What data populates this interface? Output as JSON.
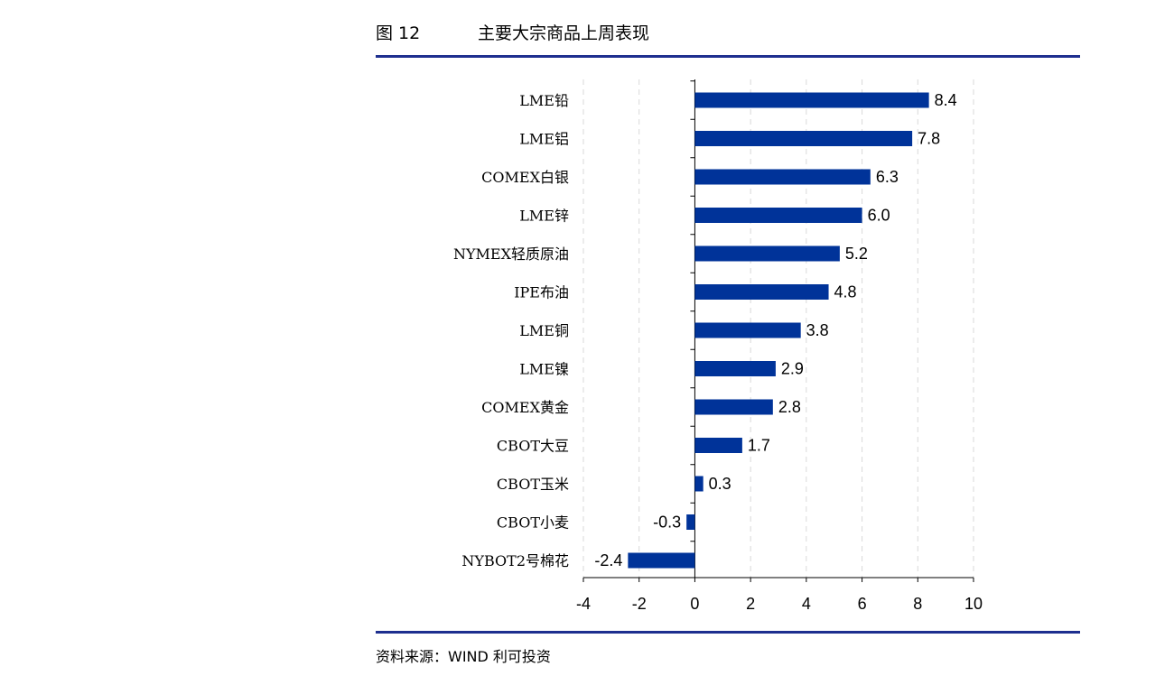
{
  "figure": {
    "number": "图 12",
    "title": "主要大宗商品上周表现",
    "source": "资料来源：WIND  利可投资"
  },
  "colors": {
    "bar": "#003399",
    "rule": "#1e2f8f",
    "grid": "#d9d9d9"
  },
  "chart_data": {
    "type": "bar",
    "orientation": "horizontal",
    "categories": [
      "LME铅",
      "LME铝",
      "COMEX白银",
      "LME锌",
      "NYMEX轻质原油",
      "IPE布油",
      "LME铜",
      "LME镍",
      "COMEX黄金",
      "CBOT大豆",
      "CBOT玉米",
      "CBOT小麦",
      "NYBOT2号棉花"
    ],
    "values": [
      8.4,
      7.8,
      6.3,
      6.0,
      5.2,
      4.8,
      3.8,
      2.9,
      2.8,
      1.7,
      0.3,
      -0.3,
      -2.4
    ],
    "value_labels": [
      "8.4",
      "7.8",
      "6.3",
      "6.0",
      "5.2",
      "4.8",
      "3.8",
      "2.9",
      "2.8",
      "1.7",
      "0.3",
      "-0.3",
      "-2.4"
    ],
    "xlim": [
      -4,
      10
    ],
    "xticks": [
      -4,
      -2,
      0,
      2,
      4,
      6,
      8,
      10
    ],
    "xtick_labels": [
      "-4",
      "-2",
      "0",
      "2",
      "4",
      "6",
      "8",
      "10"
    ],
    "grid": "vertical dashed",
    "legend": "none",
    "title": "",
    "xlabel": "",
    "ylabel": ""
  }
}
